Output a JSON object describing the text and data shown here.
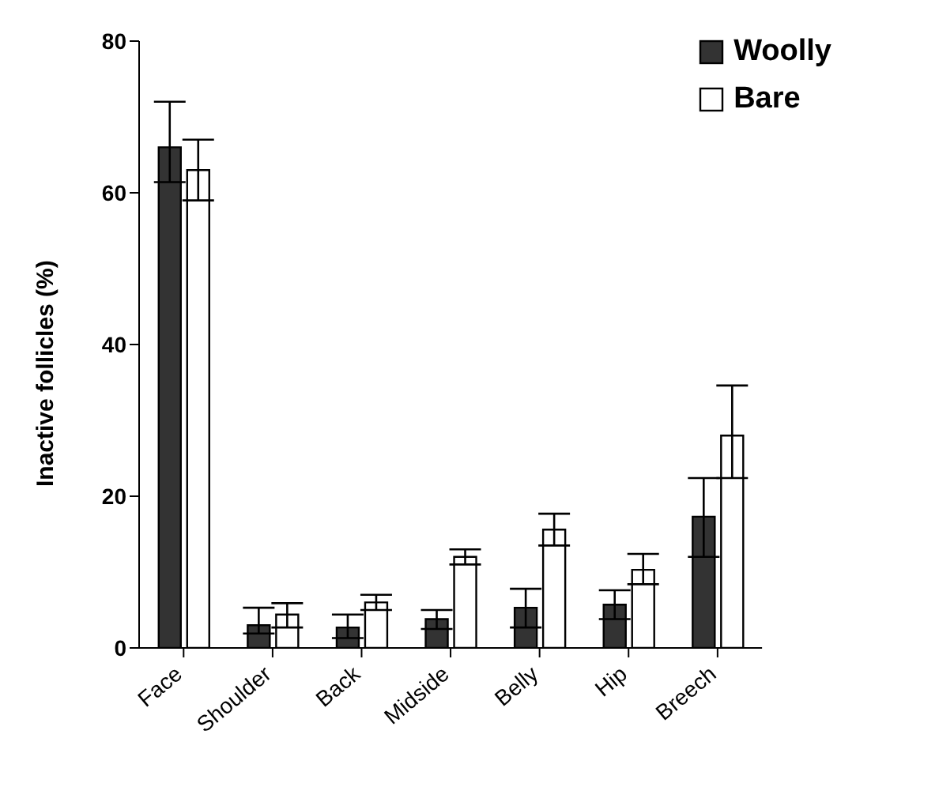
{
  "chart_data": {
    "type": "bar",
    "ylabel": "Inactive follicles (%)",
    "categories": [
      "Face",
      "Shoulder",
      "Back",
      "Midside",
      "Belly",
      "Hip",
      "Breech"
    ],
    "series": [
      {
        "name": "Woolly",
        "color": "#333333",
        "values": [
          66,
          3,
          2.7,
          3.8,
          5.3,
          5.7,
          17.3
        ],
        "errors": [
          [
            61.4,
            72
          ],
          [
            1.9,
            5.3
          ],
          [
            1.3,
            4.4
          ],
          [
            2.5,
            5
          ],
          [
            2.7,
            7.8
          ],
          [
            3.8,
            7.6
          ],
          [
            12,
            22.4
          ]
        ]
      },
      {
        "name": "Bare",
        "color": "#ffffff",
        "values": [
          63,
          4.4,
          6,
          12,
          15.6,
          10.3,
          28
        ],
        "errors": [
          [
            59,
            67
          ],
          [
            2.7,
            5.9
          ],
          [
            5,
            7
          ],
          [
            11,
            13
          ],
          [
            13.5,
            17.7
          ],
          [
            8.4,
            12.4
          ],
          [
            22.4,
            34.6
          ]
        ]
      }
    ],
    "ylim": [
      0,
      80
    ],
    "yticks": [
      0,
      20,
      40,
      60,
      80
    ],
    "grid": false,
    "legend": "top right"
  }
}
